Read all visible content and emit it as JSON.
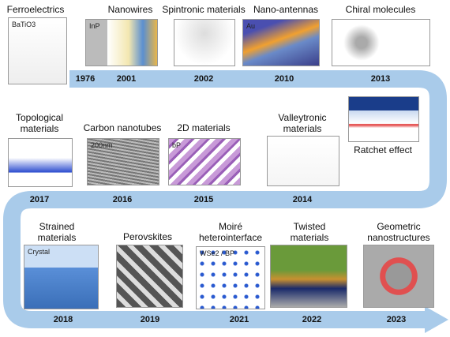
{
  "items": [
    {
      "label": "Ferroelectrics",
      "year": "1976",
      "inset": "BaTiO3"
    },
    {
      "label": "Nanowires",
      "year": "2001",
      "inset": "InP"
    },
    {
      "label": "Spintronic materials",
      "year": "2002"
    },
    {
      "label": "Nano-antennas",
      "year": "2010",
      "inset": "Au"
    },
    {
      "label": "Chiral molecules",
      "year": "2013"
    },
    {
      "label": "Ratchet effect"
    },
    {
      "label": "Valleytronic materials",
      "year": "2014"
    },
    {
      "label": "2D materials",
      "year": "2015",
      "inset": "bP"
    },
    {
      "label": "Carbon nanotubes",
      "year": "2016",
      "inset": "200nm"
    },
    {
      "label": "Topological materials",
      "year": "2017"
    },
    {
      "label": "Strained materials",
      "year": "2018",
      "inset": "Crystal"
    },
    {
      "label": "Perovskites",
      "year": "2019"
    },
    {
      "label": "Moiré heterointerface",
      "year": "2021",
      "inset": "WSe2 / BP"
    },
    {
      "label": "Twisted materials",
      "year": "2022"
    },
    {
      "label": "Geometric nanostructures",
      "year": "2023"
    }
  ]
}
